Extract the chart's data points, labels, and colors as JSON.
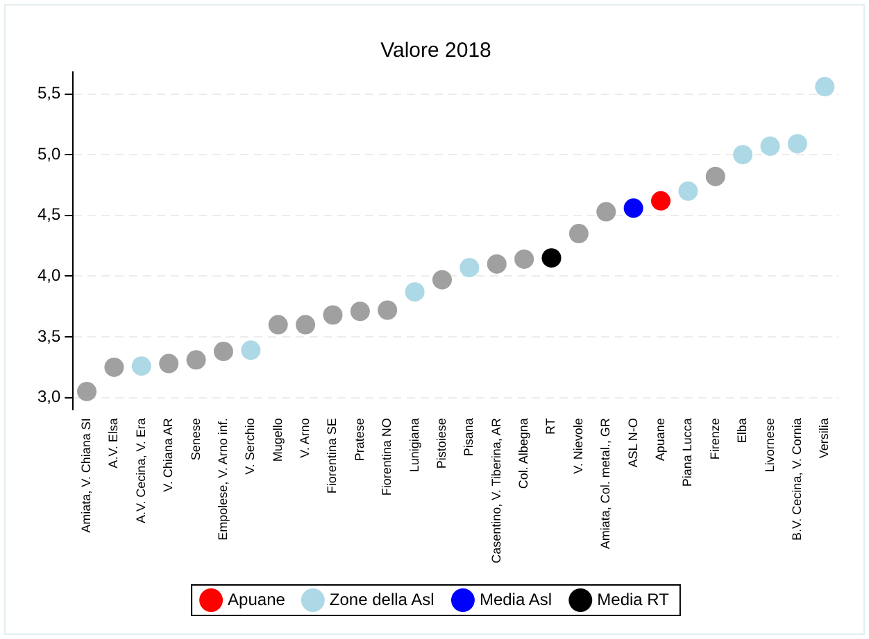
{
  "chart_data": {
    "type": "scatter",
    "title": "Valore 2018",
    "categories": [
      "Amiata, V. Chiana SI",
      "A.V. Elsa",
      "A.V. Cecina, V. Era",
      "V. Chiana AR",
      "Senese",
      "Empolese, V. Arno inf.",
      "V. Serchio",
      "Mugello",
      "V. Arno",
      "Fiorentina SE",
      "Pratese",
      "Fiorentina NO",
      "Lunigiana",
      "Pistoiese",
      "Pisana",
      "Casentino, V. Tiberina, AR",
      "Col. Albegna",
      "RT",
      "V. Nievole",
      "Amiata, Col. metal., GR",
      "ASL N-O",
      "Apuane",
      "Piana Lucca",
      "Firenze",
      "Elba",
      "Livornese",
      "B.V. Cecina, V. Cornia",
      "Versilia"
    ],
    "series": [
      {
        "color": "#a0a0a0",
        "x": [
          "Amiata, V. Chiana SI",
          "A.V. Elsa",
          "V. Chiana AR",
          "Senese",
          "Empolese, V. Arno inf.",
          "Mugello",
          "V. Arno",
          "Fiorentina SE",
          "Pratese",
          "Fiorentina NO",
          "Pistoiese",
          "Casentino, V. Tiberina, AR",
          "Col. Albegna",
          "V. Nievole",
          "Amiata, Col. metal., GR",
          "Firenze"
        ],
        "values": [
          3.05,
          3.25,
          3.28,
          3.31,
          3.38,
          3.6,
          3.6,
          3.68,
          3.71,
          3.72,
          3.97,
          4.1,
          4.14,
          4.35,
          4.53,
          4.82
        ]
      },
      {
        "name": "Apuane",
        "color": "#ff0000",
        "x": [
          "Apuane"
        ],
        "values": [
          4.62
        ]
      },
      {
        "name": "Zone della Asl",
        "color": "#add8e6",
        "x": [
          "A.V. Cecina, V. Era",
          "V. Serchio",
          "Lunigiana",
          "Pisana",
          "Piana Lucca",
          "Elba",
          "Livornese",
          "B.V. Cecina, V. Cornia",
          "Versilia"
        ],
        "values": [
          3.26,
          3.39,
          3.87,
          4.07,
          4.7,
          5.0,
          5.07,
          5.09,
          5.56
        ]
      },
      {
        "name": "Media Asl",
        "color": "#0000ff",
        "x": [
          "ASL N-O"
        ],
        "values": [
          4.56
        ]
      },
      {
        "name": "Media RT",
        "color": "#000000",
        "x": [
          "RT"
        ],
        "values": [
          4.15
        ]
      }
    ],
    "ylim": [
      2.9,
      5.68
    ],
    "yticks": [
      {
        "value": 3,
        "label": "3,0"
      },
      {
        "value": 3.5,
        "label": "3,5"
      },
      {
        "value": 4,
        "label": "4,0"
      },
      {
        "value": 4.5,
        "label": "4,5"
      },
      {
        "value": 5,
        "label": "5,0"
      },
      {
        "value": 5.5,
        "label": "5,5"
      }
    ],
    "grid": "y",
    "legend": "bottom",
    "marker": "circle"
  }
}
